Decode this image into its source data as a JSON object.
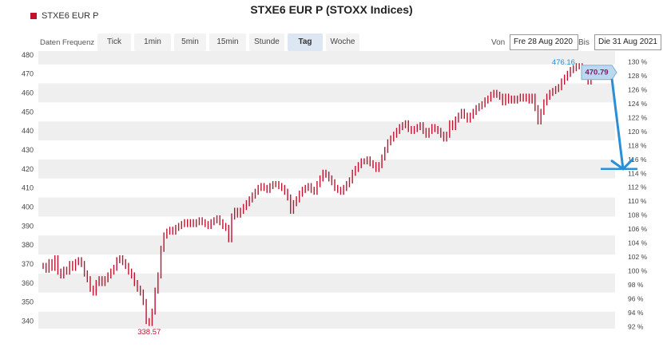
{
  "title": "STXE6 EUR P (STOXX Indices)",
  "legend": {
    "series_name": "STXE6 EUR P",
    "color": "#c0112f"
  },
  "toolbar": {
    "freq_label": "Daten Frequenz",
    "buttons": [
      "Tick",
      "1min",
      "5min",
      "15min",
      "Stunde",
      "Tag",
      "Woche"
    ],
    "active": "Tag",
    "from_label": "Von",
    "from_value": "Fre 28 Aug 2020",
    "to_label": "Bis",
    "to_value": "Die 31 Aug 2021"
  },
  "chart_data": {
    "type": "ohlc",
    "series": [
      {
        "name": "STXE6 EUR P",
        "color": "#c0112f"
      }
    ],
    "ylim": [
      336,
      482
    ],
    "y_ticks": [
      340,
      350,
      360,
      370,
      380,
      390,
      400,
      410,
      420,
      430,
      440,
      450,
      460,
      470,
      480
    ],
    "y2_ticks": [
      "92 %",
      "94 %",
      "96 %",
      "98 %",
      "100 %",
      "102 %",
      "104 %",
      "106 %",
      "108 %",
      "110 %",
      "112 %",
      "114 %",
      "116 %",
      "118 %",
      "120 %",
      "122 %",
      "124 %",
      "126 %",
      "128 %",
      "130 %"
    ],
    "y2_base": 366.4,
    "grid": true,
    "annotations": {
      "min_label": "338.57",
      "max_label": "476.16",
      "last_label": "470.79"
    },
    "arrow_color": "#2a8fd6",
    "values": [
      369,
      367,
      371,
      368,
      373,
      366,
      364,
      367,
      366,
      370,
      368,
      371,
      372,
      370,
      365,
      362,
      357,
      355,
      360,
      362,
      360,
      362,
      364,
      366,
      368,
      372,
      373,
      371,
      369,
      366,
      364,
      360,
      357,
      355,
      350,
      340,
      339,
      345,
      356,
      364,
      378,
      385,
      387,
      388,
      387,
      389,
      390,
      391,
      392,
      391,
      392,
      391,
      392,
      393,
      392,
      391,
      390,
      392,
      393,
      394,
      392,
      390,
      389,
      383,
      395,
      398,
      396,
      398,
      400,
      402,
      404,
      406,
      408,
      410,
      411,
      410,
      409,
      411,
      412,
      412,
      411,
      410,
      408,
      405,
      398,
      402,
      404,
      407,
      409,
      410,
      411,
      409,
      408,
      412,
      415,
      418,
      417,
      415,
      413,
      410,
      409,
      408,
      410,
      412,
      414,
      418,
      420,
      422,
      424,
      424,
      425,
      423,
      422,
      420,
      422,
      426,
      430,
      434,
      436,
      438,
      440,
      442,
      443,
      444,
      441,
      440,
      441,
      442,
      443,
      440,
      438,
      440,
      442,
      441,
      440,
      438,
      436,
      438,
      444,
      442,
      446,
      448,
      450,
      448,
      446,
      448,
      450,
      452,
      453,
      454,
      456,
      457,
      459,
      460,
      459,
      458,
      455,
      458,
      456,
      457,
      456,
      457,
      458,
      457,
      458,
      456,
      458,
      452,
      445,
      450,
      455,
      458,
      460,
      461,
      462,
      463,
      466,
      468,
      470,
      472,
      473,
      474,
      474,
      473,
      470,
      466,
      469,
      472,
      473,
      472,
      470,
      471,
      470.79
    ]
  }
}
